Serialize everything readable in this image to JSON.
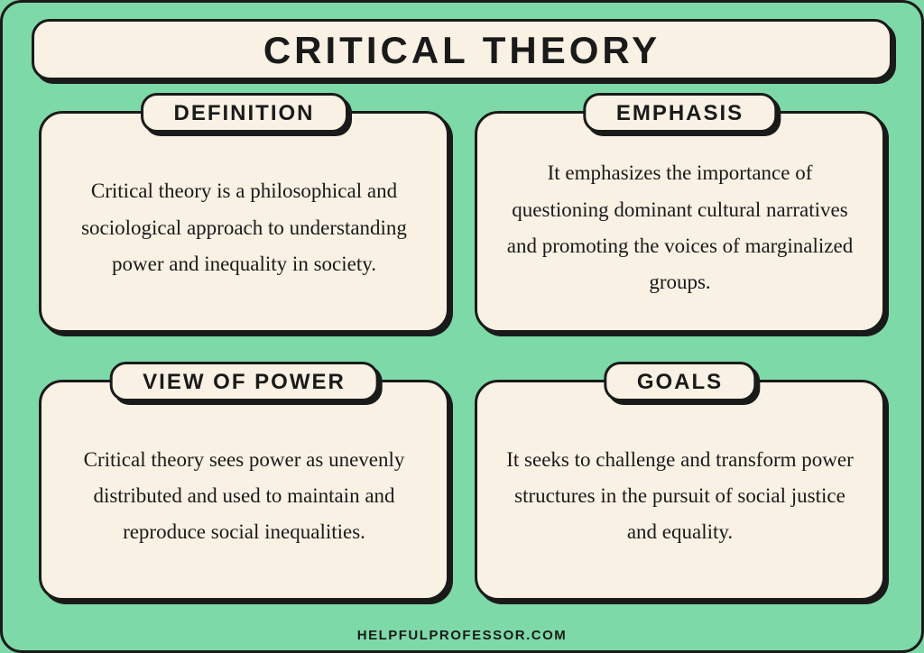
{
  "title": "CRITICAL THEORY",
  "cards": [
    {
      "label": "DEFINITION",
      "body": "Critical theory is a philosophical and sociological approach to understanding power and inequality in society."
    },
    {
      "label": "EMPHASIS",
      "body": "It emphasizes the importance of questioning dominant cultural narratives and promoting the voices of marginalized groups."
    },
    {
      "label": "VIEW OF POWER",
      "body": "Critical theory sees power as unevenly distributed and used to maintain and reproduce social inequalities."
    },
    {
      "label": "GOALS",
      "body": "It seeks to challenge and transform power structures in the pursuit of social justice and equality."
    }
  ],
  "footer": "HELPFULPROFESSOR.COM",
  "style": {
    "background_color": "#7ed9a8",
    "panel_color": "#f8f1e4",
    "border_color": "#1a1a1a",
    "shadow_color": "#1a1a1a",
    "title_fontsize": 42,
    "label_fontsize": 24,
    "body_fontsize": 23,
    "footer_fontsize": 15,
    "border_radius_outer": 24,
    "border_radius_card": 26,
    "border_radius_pill": 18
  }
}
